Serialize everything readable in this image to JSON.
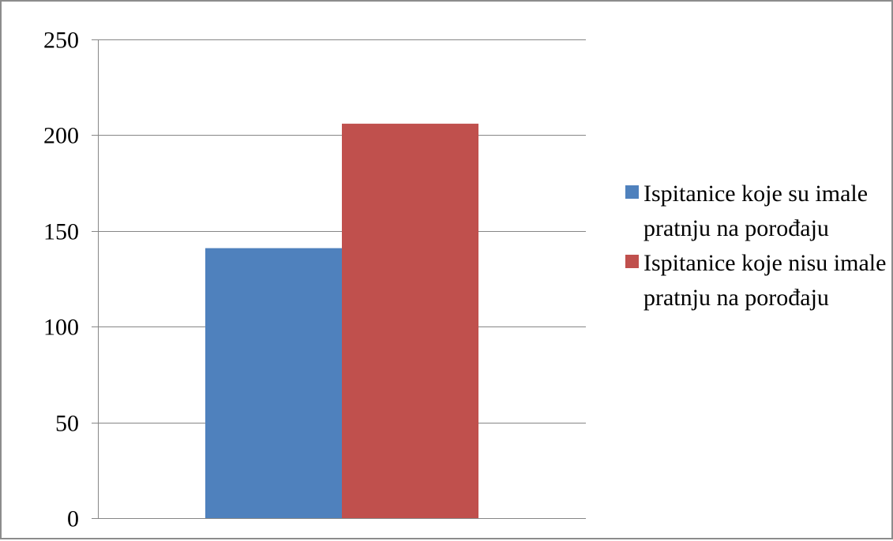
{
  "chart_data": {
    "type": "bar",
    "title": "",
    "xlabel": "",
    "ylabel": "",
    "categories": [
      ""
    ],
    "series": [
      {
        "name": "Ispitanice koje su imale pratnju na porođaju",
        "values": [
          141
        ],
        "color": "#4F81BD"
      },
      {
        "name": "Ispitanice koje nisu imale pratnju na porođaju",
        "values": [
          206
        ],
        "color": "#C0504D"
      }
    ],
    "ylim": [
      0,
      250
    ],
    "yticks": [
      0,
      50,
      100,
      150,
      200,
      250
    ],
    "grid": true,
    "legend_position": "right",
    "gridline_color": "#868686"
  }
}
